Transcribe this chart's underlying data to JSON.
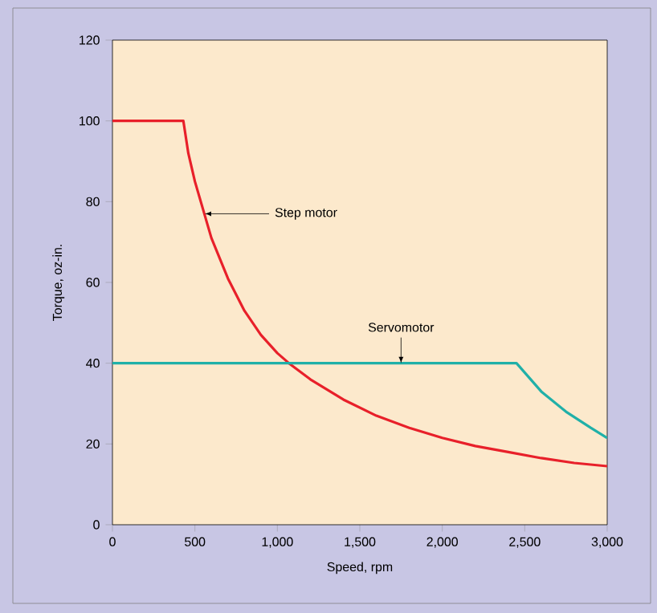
{
  "chart_data": {
    "type": "line",
    "xlabel": "Speed, rpm",
    "ylabel": "Torque, oz-in.",
    "xlim": [
      0,
      3000
    ],
    "ylim": [
      0,
      120
    ],
    "xticks": [
      0,
      {
        "value": 500,
        "label": "500"
      },
      {
        "value": 1000,
        "label": "1,000"
      },
      {
        "value": 1500,
        "label": "1,500"
      },
      {
        "value": 2000,
        "label": "2,000"
      },
      {
        "value": 2500,
        "label": "2,500"
      },
      {
        "value": 3000,
        "label": "3,000"
      }
    ],
    "yticks": [
      0,
      20,
      40,
      60,
      80,
      100,
      120
    ],
    "grid": false,
    "marker": "none",
    "line_style": "solid",
    "series": [
      {
        "color": "#e8202a",
        "x": [
          0,
          430,
          460,
          500,
          550,
          600,
          700,
          800,
          900,
          1000,
          1070,
          1200,
          1400,
          1600,
          1800,
          2000,
          2200,
          2400,
          2600,
          2800,
          3000
        ],
        "values": [
          100,
          100,
          92,
          85,
          78,
          71,
          61,
          53,
          47,
          42.5,
          40,
          36,
          31,
          27,
          24,
          21.5,
          19.5,
          18,
          16.5,
          15.3,
          14.5
        ]
      },
      {
        "color": "#20b0a8",
        "x": [
          0,
          2450,
          2600,
          2750,
          2900,
          3000
        ],
        "values": [
          40,
          40,
          33,
          28,
          24,
          21.5
        ]
      }
    ],
    "annotations": [
      {
        "text": "Step motor",
        "x": 560,
        "y": 77
      },
      {
        "text": "Servomotor",
        "x": 1750,
        "y": 40
      }
    ]
  }
}
